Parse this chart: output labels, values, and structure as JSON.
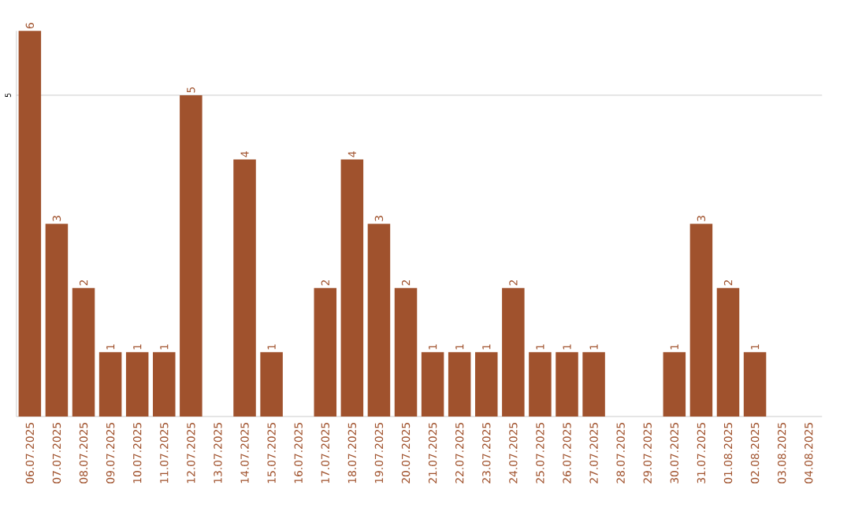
{
  "chart_data": {
    "type": "bar",
    "categories": [
      "06.07.2025",
      "07.07.2025",
      "08.07.2025",
      "09.07.2025",
      "10.07.2025",
      "11.07.2025",
      "12.07.2025",
      "13.07.2025",
      "14.07.2025",
      "15.07.2025",
      "16.07.2025",
      "17.07.2025",
      "18.07.2025",
      "19.07.2025",
      "20.07.2025",
      "21.07.2025",
      "22.07.2025",
      "23.07.2025",
      "24.07.2025",
      "25.07.2025",
      "26.07.2025",
      "27.07.2025",
      "28.07.2025",
      "29.07.2025",
      "30.07.2025",
      "31.07.2025",
      "01.08.2025",
      "02.08.2025",
      "03.08.2025",
      "04.08.2025"
    ],
    "values": [
      6,
      3,
      2,
      1,
      1,
      1,
      5,
      0,
      4,
      1,
      0,
      2,
      4,
      3,
      2,
      1,
      1,
      1,
      2,
      1,
      1,
      1,
      0,
      0,
      1,
      3,
      2,
      1,
      0,
      0
    ],
    "value_labels": [
      "6",
      "3",
      "2",
      "1",
      "1",
      "1",
      "5",
      null,
      "4",
      "1",
      null,
      "2",
      "4",
      "3",
      "2",
      "1",
      "1",
      "1",
      "2",
      "1",
      "1",
      "1",
      null,
      null,
      "1",
      "3",
      "2",
      "1",
      null,
      null
    ],
    "color": "#a0522d",
    "ylim": [
      0,
      6
    ],
    "yticks": [
      5
    ],
    "grid": "y"
  }
}
